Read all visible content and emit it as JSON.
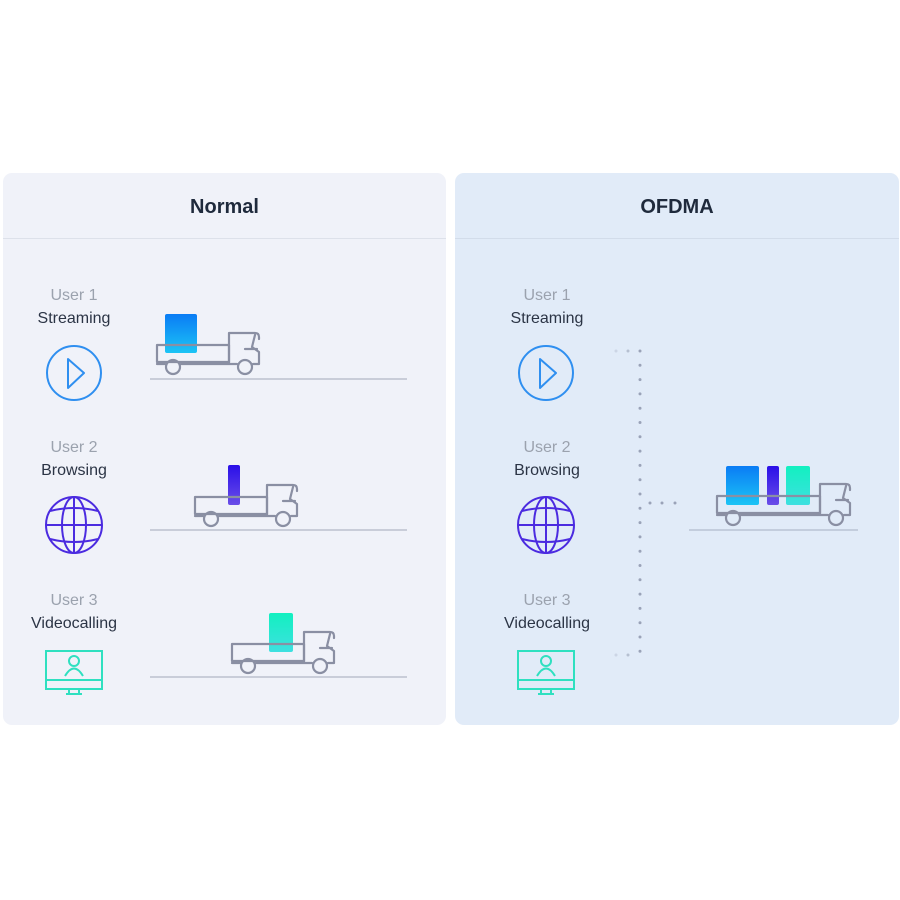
{
  "panels": {
    "normal": {
      "title": "Normal"
    },
    "ofdma": {
      "title": "OFDMA"
    }
  },
  "users": [
    {
      "label": "User 1",
      "activity": "Streaming",
      "icon": "play-icon",
      "color": "#2f8ff0"
    },
    {
      "label": "User 2",
      "activity": "Browsing",
      "icon": "globe-icon",
      "color": "#4b2be0"
    },
    {
      "label": "User 3",
      "activity": "Videocalling",
      "icon": "monitor-user-icon",
      "color": "#2fe0c0"
    }
  ],
  "colors": {
    "streaming": [
      "#0a7cf5",
      "#1cc4f5"
    ],
    "browsing": [
      "#2a0fe8",
      "#6a4ee8"
    ],
    "videocalling": [
      "#12f0c0",
      "#3ee0e0"
    ],
    "truck": "#8a8fa3"
  }
}
